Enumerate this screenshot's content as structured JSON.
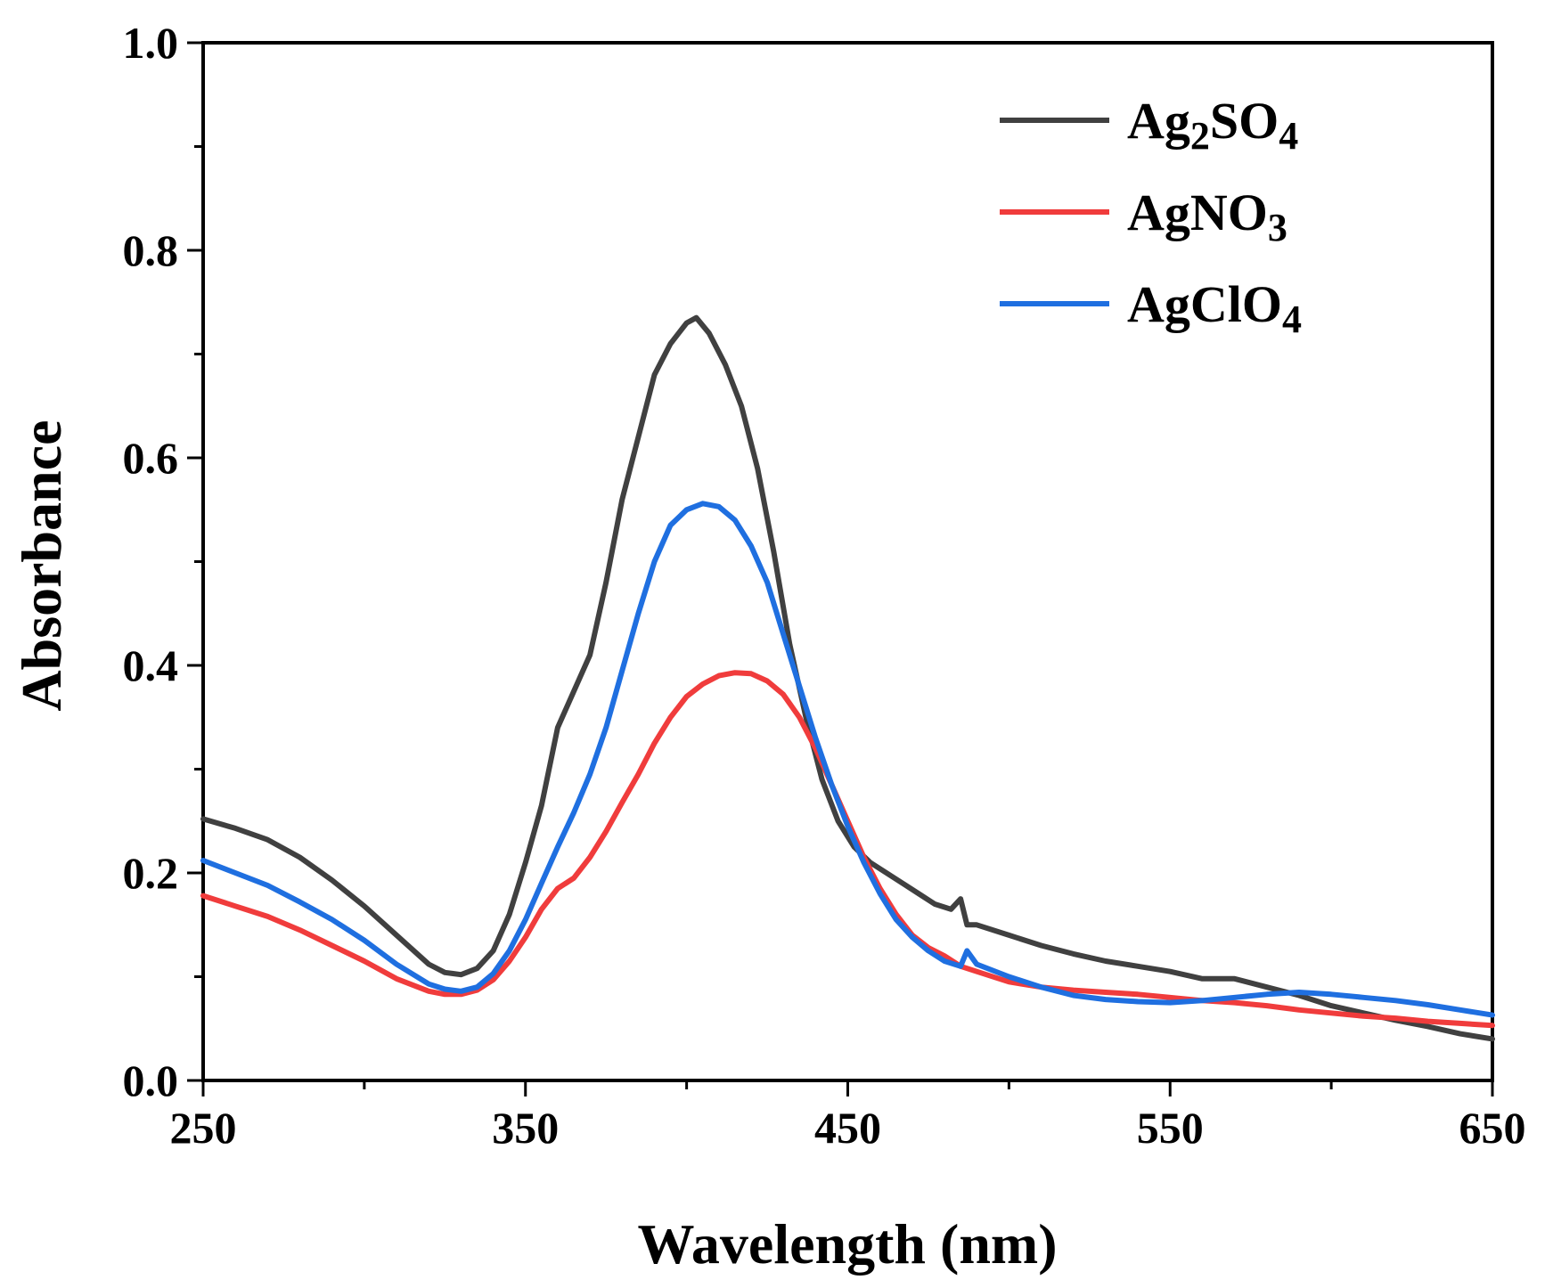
{
  "chart_data": {
    "type": "line",
    "title": "",
    "xlabel": "Wavelength (nm)",
    "ylabel": "Absorbance",
    "xlim": [
      250,
      650
    ],
    "ylim": [
      0.0,
      1.0
    ],
    "x_ticks": [
      250,
      350,
      450,
      550,
      650
    ],
    "x_tick_labels": [
      "250",
      "350",
      "450",
      "550",
      "650"
    ],
    "y_ticks": [
      0.0,
      0.2,
      0.4,
      0.6,
      0.8,
      1.0
    ],
    "y_tick_labels": [
      "0.0",
      "0.2",
      "0.4",
      "0.6",
      "0.8",
      "1.0"
    ],
    "grid": false,
    "legend_position": "top-right",
    "series": [
      {
        "name": "Ag2SO4",
        "label_parts": [
          {
            "t": "Ag",
            "sub": false
          },
          {
            "t": "2",
            "sub": true
          },
          {
            "t": "SO",
            "sub": false
          },
          {
            "t": "4",
            "sub": true
          }
        ],
        "color": "#404040",
        "points": [
          [
            250,
            0.252
          ],
          [
            260,
            0.243
          ],
          [
            270,
            0.232
          ],
          [
            280,
            0.215
          ],
          [
            290,
            0.193
          ],
          [
            300,
            0.168
          ],
          [
            310,
            0.14
          ],
          [
            320,
            0.112
          ],
          [
            325,
            0.104
          ],
          [
            330,
            0.102
          ],
          [
            335,
            0.108
          ],
          [
            340,
            0.125
          ],
          [
            345,
            0.16
          ],
          [
            350,
            0.21
          ],
          [
            355,
            0.265
          ],
          [
            360,
            0.34
          ],
          [
            365,
            0.375
          ],
          [
            370,
            0.41
          ],
          [
            375,
            0.48
          ],
          [
            380,
            0.56
          ],
          [
            385,
            0.62
          ],
          [
            390,
            0.68
          ],
          [
            395,
            0.71
          ],
          [
            400,
            0.73
          ],
          [
            403,
            0.735
          ],
          [
            407,
            0.72
          ],
          [
            412,
            0.69
          ],
          [
            417,
            0.65
          ],
          [
            422,
            0.59
          ],
          [
            427,
            0.51
          ],
          [
            432,
            0.42
          ],
          [
            437,
            0.35
          ],
          [
            442,
            0.29
          ],
          [
            447,
            0.25
          ],
          [
            452,
            0.225
          ],
          [
            457,
            0.21
          ],
          [
            462,
            0.2
          ],
          [
            467,
            0.19
          ],
          [
            472,
            0.18
          ],
          [
            477,
            0.17
          ],
          [
            482,
            0.165
          ],
          [
            485,
            0.175
          ],
          [
            487,
            0.15
          ],
          [
            490,
            0.15
          ],
          [
            500,
            0.14
          ],
          [
            510,
            0.13
          ],
          [
            520,
            0.122
          ],
          [
            530,
            0.115
          ],
          [
            540,
            0.11
          ],
          [
            550,
            0.105
          ],
          [
            560,
            0.098
          ],
          [
            570,
            0.098
          ],
          [
            580,
            0.09
          ],
          [
            590,
            0.082
          ],
          [
            600,
            0.072
          ],
          [
            610,
            0.065
          ],
          [
            620,
            0.058
          ],
          [
            630,
            0.052
          ],
          [
            640,
            0.045
          ],
          [
            650,
            0.04
          ]
        ]
      },
      {
        "name": "AgNO3",
        "label_parts": [
          {
            "t": "AgNO",
            "sub": false
          },
          {
            "t": "3",
            "sub": true
          }
        ],
        "color": "#f03c3c",
        "points": [
          [
            250,
            0.178
          ],
          [
            260,
            0.168
          ],
          [
            270,
            0.158
          ],
          [
            280,
            0.145
          ],
          [
            290,
            0.13
          ],
          [
            300,
            0.115
          ],
          [
            310,
            0.098
          ],
          [
            320,
            0.086
          ],
          [
            325,
            0.083
          ],
          [
            330,
            0.083
          ],
          [
            335,
            0.087
          ],
          [
            340,
            0.097
          ],
          [
            345,
            0.115
          ],
          [
            350,
            0.138
          ],
          [
            355,
            0.165
          ],
          [
            360,
            0.185
          ],
          [
            365,
            0.195
          ],
          [
            370,
            0.215
          ],
          [
            375,
            0.24
          ],
          [
            380,
            0.268
          ],
          [
            385,
            0.295
          ],
          [
            390,
            0.325
          ],
          [
            395,
            0.35
          ],
          [
            400,
            0.37
          ],
          [
            405,
            0.382
          ],
          [
            410,
            0.39
          ],
          [
            415,
            0.393
          ],
          [
            420,
            0.392
          ],
          [
            425,
            0.385
          ],
          [
            430,
            0.372
          ],
          [
            435,
            0.35
          ],
          [
            440,
            0.32
          ],
          [
            445,
            0.285
          ],
          [
            450,
            0.25
          ],
          [
            455,
            0.215
          ],
          [
            460,
            0.185
          ],
          [
            465,
            0.16
          ],
          [
            470,
            0.14
          ],
          [
            475,
            0.128
          ],
          [
            480,
            0.12
          ],
          [
            485,
            0.11
          ],
          [
            490,
            0.105
          ],
          [
            500,
            0.095
          ],
          [
            510,
            0.09
          ],
          [
            520,
            0.087
          ],
          [
            530,
            0.085
          ],
          [
            540,
            0.083
          ],
          [
            550,
            0.08
          ],
          [
            560,
            0.077
          ],
          [
            570,
            0.075
          ],
          [
            580,
            0.072
          ],
          [
            590,
            0.068
          ],
          [
            600,
            0.065
          ],
          [
            610,
            0.062
          ],
          [
            620,
            0.06
          ],
          [
            630,
            0.057
          ],
          [
            640,
            0.055
          ],
          [
            650,
            0.053
          ]
        ]
      },
      {
        "name": "AgClO4",
        "label_parts": [
          {
            "t": "AgClO",
            "sub": false
          },
          {
            "t": "4",
            "sub": true
          }
        ],
        "color": "#1f6fe0",
        "points": [
          [
            250,
            0.212
          ],
          [
            260,
            0.2
          ],
          [
            270,
            0.188
          ],
          [
            280,
            0.172
          ],
          [
            290,
            0.155
          ],
          [
            300,
            0.135
          ],
          [
            310,
            0.112
          ],
          [
            320,
            0.093
          ],
          [
            325,
            0.088
          ],
          [
            330,
            0.086
          ],
          [
            335,
            0.09
          ],
          [
            340,
            0.103
          ],
          [
            345,
            0.125
          ],
          [
            350,
            0.155
          ],
          [
            355,
            0.19
          ],
          [
            360,
            0.225
          ],
          [
            365,
            0.258
          ],
          [
            370,
            0.295
          ],
          [
            375,
            0.34
          ],
          [
            380,
            0.395
          ],
          [
            385,
            0.45
          ],
          [
            390,
            0.5
          ],
          [
            395,
            0.535
          ],
          [
            400,
            0.55
          ],
          [
            405,
            0.556
          ],
          [
            410,
            0.553
          ],
          [
            415,
            0.54
          ],
          [
            420,
            0.515
          ],
          [
            425,
            0.48
          ],
          [
            430,
            0.43
          ],
          [
            435,
            0.38
          ],
          [
            440,
            0.33
          ],
          [
            445,
            0.285
          ],
          [
            450,
            0.245
          ],
          [
            455,
            0.21
          ],
          [
            460,
            0.18
          ],
          [
            465,
            0.155
          ],
          [
            470,
            0.138
          ],
          [
            475,
            0.125
          ],
          [
            480,
            0.115
          ],
          [
            485,
            0.11
          ],
          [
            487,
            0.125
          ],
          [
            490,
            0.112
          ],
          [
            500,
            0.1
          ],
          [
            510,
            0.09
          ],
          [
            520,
            0.082
          ],
          [
            530,
            0.078
          ],
          [
            540,
            0.076
          ],
          [
            550,
            0.075
          ],
          [
            560,
            0.077
          ],
          [
            570,
            0.08
          ],
          [
            580,
            0.083
          ],
          [
            590,
            0.085
          ],
          [
            600,
            0.083
          ],
          [
            610,
            0.08
          ],
          [
            620,
            0.077
          ],
          [
            630,
            0.073
          ],
          [
            640,
            0.068
          ],
          [
            650,
            0.063
          ]
        ]
      }
    ]
  }
}
